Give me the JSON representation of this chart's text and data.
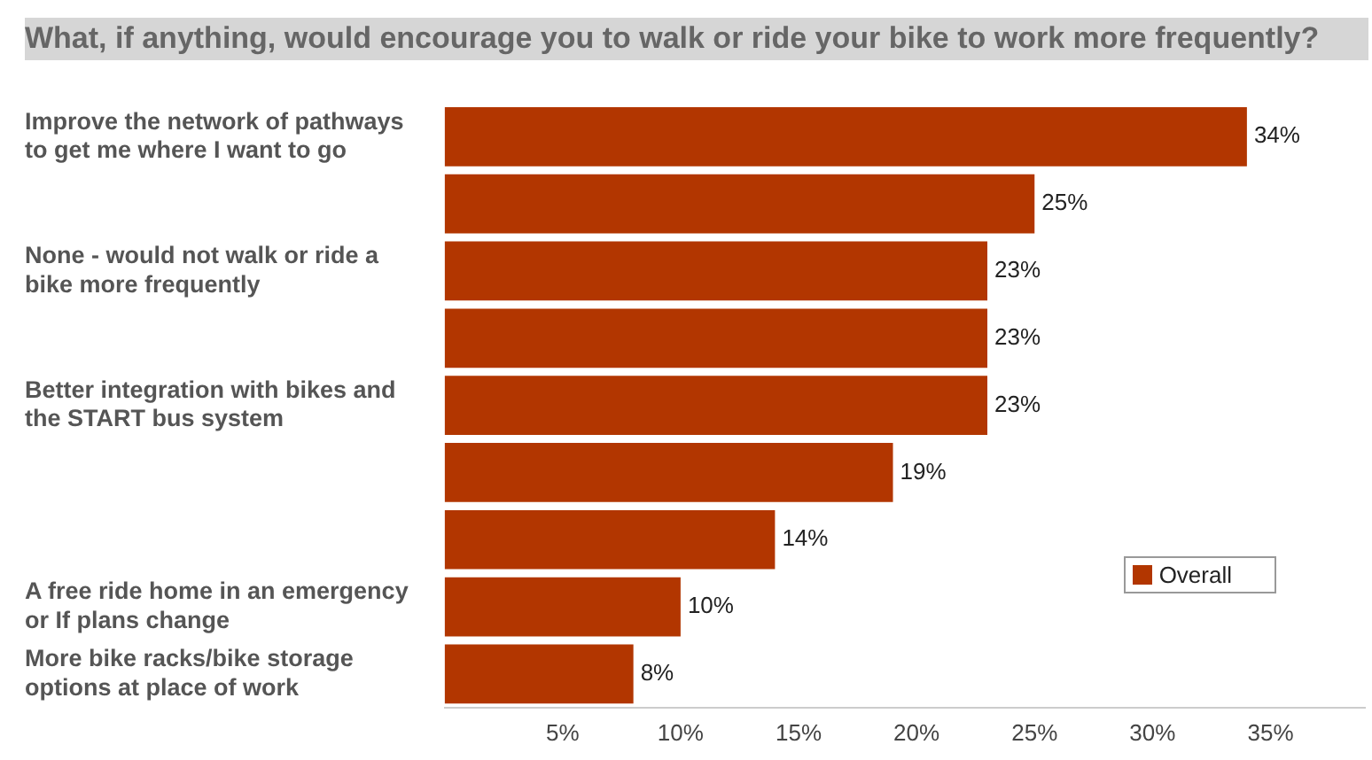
{
  "chart_data": {
    "type": "bar",
    "orientation": "horizontal",
    "title": "What, if anything, would encourage you to walk or ride your bike to work more frequently?",
    "categories": [
      "Improve the network of pathways to get me where I want to go",
      null,
      "None - would not walk or ride a bike more frequently",
      null,
      "Better integration with bikes and the START bus system",
      null,
      null,
      "A free ride home in an emergency or If plans change",
      "More bike racks/bike storage options at place of work"
    ],
    "series": [
      {
        "name": "Overall",
        "color": "#b23600",
        "values": [
          34,
          25,
          23,
          23,
          23,
          19,
          14,
          10,
          8
        ],
        "value_labels": [
          "34%",
          "25%",
          "23%",
          "23%",
          "23%",
          "19%",
          "14%",
          "10%",
          "8%"
        ]
      }
    ],
    "xlim": [
      0,
      39
    ],
    "xticks": [
      {
        "value": 5,
        "label": "5%"
      },
      {
        "value": 10,
        "label": "10%"
      },
      {
        "value": 15,
        "label": "15%"
      },
      {
        "value": 20,
        "label": "20%"
      },
      {
        "value": 25,
        "label": "25%"
      },
      {
        "value": 30,
        "label": "30%"
      },
      {
        "value": 35,
        "label": "35%"
      }
    ],
    "grid": false,
    "legend": "bottom right"
  }
}
